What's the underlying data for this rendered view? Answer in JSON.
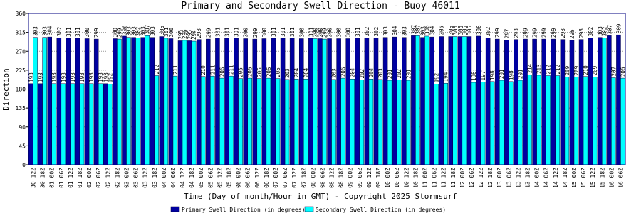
{
  "chart_data": {
    "type": "bar",
    "title": "Primary and Secondary Swell Direction - Buoy 46011",
    "x_label": "Time (Day of month/Hour in GMT) - Copyright 2025 Stormsurf",
    "y_label": "Direction",
    "categories": [
      "30 12Z",
      "30 18Z",
      "01 00Z",
      "01 06Z",
      "01 12Z",
      "01 18Z",
      "02 00Z",
      "02 06Z",
      "02 12Z",
      "02 18Z",
      "03 00Z",
      "03 06Z",
      "03 12Z",
      "03 18Z",
      "04 00Z",
      "04 06Z",
      "04 12Z",
      "04 18Z",
      "05 00Z",
      "05 06Z",
      "05 12Z",
      "05 18Z",
      "06 00Z",
      "06 06Z",
      "06 12Z",
      "06 18Z",
      "07 00Z",
      "07 06Z",
      "07 12Z",
      "07 18Z",
      "08 00Z",
      "08 06Z",
      "08 12Z",
      "08 18Z",
      "09 00Z",
      "09 06Z",
      "09 12Z",
      "09 18Z",
      "10 00Z",
      "10 06Z",
      "10 12Z",
      "10 18Z",
      "11 00Z",
      "11 06Z",
      "11 12Z",
      "11 18Z",
      "12 00Z",
      "12 06Z",
      "12 12Z",
      "12 18Z",
      "13 00Z",
      "13 06Z",
      "13 12Z",
      "13 18Z",
      "14 00Z",
      "14 06Z",
      "14 12Z",
      "14 18Z",
      "15 00Z",
      "15 06Z",
      "15 12Z",
      "15 18Z",
      "16 00Z",
      "16 06Z"
    ],
    "series": [
      {
        "name": "Primary Swell Direction (in degrees)",
        "color": "#0000a0",
        "values": [
          193,
          193,
          304,
          302,
          301,
          301,
          300,
          299,
          193,
          300,
          306,
          303,
          303,
          303,
          305,
          300,
          295,
          295,
          298,
          299,
          301,
          301,
          301,
          300,
          299,
          300,
          301,
          301,
          301,
          300,
          301,
          300,
          300,
          300,
          300,
          301,
          302,
          302,
          303,
          304,
          303,
          307,
          303,
          304,
          305,
          305,
          305,
          305,
          306,
          302,
          299,
          297,
          298,
          299,
          299,
          299,
          299,
          298,
          296,
          298,
          302,
          303,
          307,
          309
        ]
      },
      {
        "name": "Secondary Swell Direction (in degrees)",
        "color": "#00ffff",
        "values": [
          303,
          303,
          193,
          193,
          193,
          193,
          193,
          193,
          192,
          299,
          303,
          302,
          307,
          212,
          301,
          211,
          296,
          294,
          210,
          211,
          206,
          211,
          205,
          206,
          205,
          206,
          205,
          203,
          204,
          204,
          300,
          299,
          203,
          206,
          204,
          202,
          204,
          203,
          201,
          202,
          201,
          307,
          306,
          192,
          194,
          305,
          305,
          196,
          197,
          198,
          201,
          198,
          201,
          214,
          213,
          212,
          212,
          209,
          209,
          210,
          209,
          302,
          207,
          206
        ]
      }
    ],
    "ylim": [
      0,
      360
    ],
    "yticks": [
      0,
      45,
      90,
      135,
      180,
      225,
      270,
      315,
      360
    ],
    "grid": true
  }
}
